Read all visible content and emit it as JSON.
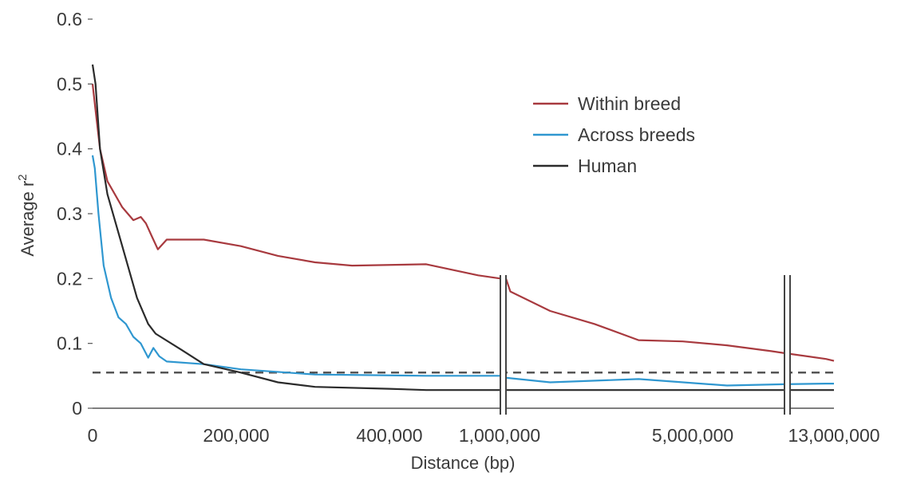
{
  "chart_data": {
    "type": "line",
    "xlabel": "Distance (bp)",
    "ylabel": "Average r",
    "ylabel_superscript": "2",
    "ylim": [
      0,
      0.6
    ],
    "y_ticks": [
      "0",
      "0.1",
      "0.2",
      "0.3",
      "0.4",
      "0.5",
      "0.6"
    ],
    "x_ticks": [
      "0",
      "200,000",
      "400,000",
      "1,000,000",
      "5,000,000",
      "13,000,000"
    ],
    "x_axis_breaks": [
      "1,000,000",
      "13,000,000"
    ],
    "threshold": 0.055,
    "legend_position": "top-right",
    "series": [
      {
        "name": "Within breed",
        "color": "#a83a3f",
        "points": [
          [
            0,
            0.5
          ],
          [
            5000,
            0.45
          ],
          [
            10000,
            0.4
          ],
          [
            20000,
            0.35
          ],
          [
            40000,
            0.31
          ],
          [
            55000,
            0.29
          ],
          [
            65000,
            0.295
          ],
          [
            72000,
            0.285
          ],
          [
            80000,
            0.265
          ],
          [
            88000,
            0.245
          ],
          [
            100000,
            0.26
          ],
          [
            150000,
            0.26
          ],
          [
            200000,
            0.25
          ],
          [
            250000,
            0.235
          ],
          [
            300000,
            0.225
          ],
          [
            350000,
            0.22
          ],
          [
            450000,
            0.222
          ],
          [
            520000,
            0.205
          ],
          [
            550000,
            0.2
          ],
          [
            1000000,
            0.2
          ],
          [
            1100000,
            0.18
          ],
          [
            2000000,
            0.15
          ],
          [
            3000000,
            0.13
          ],
          [
            4000000,
            0.105
          ],
          [
            5000000,
            0.103
          ],
          [
            6000000,
            0.097
          ],
          [
            7000000,
            0.088
          ],
          [
            7300000,
            0.085
          ],
          [
            12000000,
            0.076
          ],
          [
            13000000,
            0.073
          ]
        ]
      },
      {
        "name": "Across breeds",
        "color": "#2f97d0",
        "points": [
          [
            0,
            0.39
          ],
          [
            3000,
            0.37
          ],
          [
            8000,
            0.3
          ],
          [
            15000,
            0.22
          ],
          [
            25000,
            0.17
          ],
          [
            35000,
            0.14
          ],
          [
            45000,
            0.13
          ],
          [
            55000,
            0.11
          ],
          [
            65000,
            0.1
          ],
          [
            75000,
            0.078
          ],
          [
            82000,
            0.093
          ],
          [
            90000,
            0.08
          ],
          [
            100000,
            0.072
          ],
          [
            150000,
            0.068
          ],
          [
            200000,
            0.06
          ],
          [
            300000,
            0.052
          ],
          [
            450000,
            0.05
          ],
          [
            550000,
            0.05
          ],
          [
            1000000,
            0.047
          ],
          [
            2000000,
            0.04
          ],
          [
            4000000,
            0.045
          ],
          [
            6000000,
            0.035
          ],
          [
            7300000,
            0.037
          ],
          [
            12000000,
            0.038
          ],
          [
            13000000,
            0.038
          ]
        ]
      },
      {
        "name": "Human",
        "color": "#2b2b2b",
        "points": [
          [
            0,
            0.53
          ],
          [
            4000,
            0.5
          ],
          [
            10000,
            0.4
          ],
          [
            20000,
            0.33
          ],
          [
            40000,
            0.25
          ],
          [
            60000,
            0.17
          ],
          [
            75000,
            0.13
          ],
          [
            85000,
            0.115
          ],
          [
            120000,
            0.09
          ],
          [
            150000,
            0.068
          ],
          [
            200000,
            0.055
          ],
          [
            250000,
            0.04
          ],
          [
            300000,
            0.033
          ],
          [
            400000,
            0.03
          ],
          [
            450000,
            0.028
          ],
          [
            550000,
            0.028
          ],
          [
            1000000,
            0.028
          ],
          [
            5000000,
            0.028
          ],
          [
            7300000,
            0.028
          ],
          [
            13000000,
            0.028
          ]
        ]
      }
    ]
  }
}
